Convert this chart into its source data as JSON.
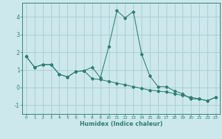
{
  "xlabel": "Humidex (Indice chaleur)",
  "background_color": "#cce8ec",
  "grid_color": "#aacdd4",
  "line_color": "#2e7d72",
  "xlim": [
    -0.5,
    23.5
  ],
  "ylim": [
    -1.5,
    4.8
  ],
  "yticks": [
    -1,
    0,
    1,
    2,
    3,
    4
  ],
  "xticks": [
    0,
    1,
    2,
    3,
    4,
    5,
    6,
    7,
    8,
    9,
    10,
    11,
    12,
    13,
    14,
    15,
    16,
    17,
    18,
    19,
    20,
    21,
    22,
    23
  ],
  "line1_x": [
    0,
    1,
    2,
    3,
    4,
    5,
    6,
    7,
    8,
    9,
    10,
    11,
    12,
    13,
    14,
    15,
    16,
    17,
    18,
    19,
    20,
    21,
    22,
    23
  ],
  "line1_y": [
    1.75,
    1.15,
    1.3,
    1.3,
    0.75,
    0.6,
    0.9,
    0.95,
    1.15,
    0.55,
    2.3,
    4.35,
    3.95,
    4.3,
    1.9,
    0.65,
    0.05,
    0.05,
    -0.2,
    -0.35,
    -0.65,
    -0.65,
    -0.75,
    -0.55
  ],
  "line2_x": [
    0,
    1,
    2,
    3,
    4,
    5,
    6,
    7,
    8,
    9,
    10,
    11,
    12,
    13,
    14,
    15,
    16,
    17,
    18,
    19,
    20,
    21,
    22,
    23
  ],
  "line2_y": [
    1.75,
    1.15,
    1.3,
    1.3,
    0.75,
    0.6,
    0.9,
    0.95,
    0.5,
    0.45,
    0.35,
    0.25,
    0.15,
    0.05,
    -0.05,
    -0.15,
    -0.2,
    -0.25,
    -0.35,
    -0.45,
    -0.55,
    -0.65,
    -0.75,
    -0.55
  ]
}
